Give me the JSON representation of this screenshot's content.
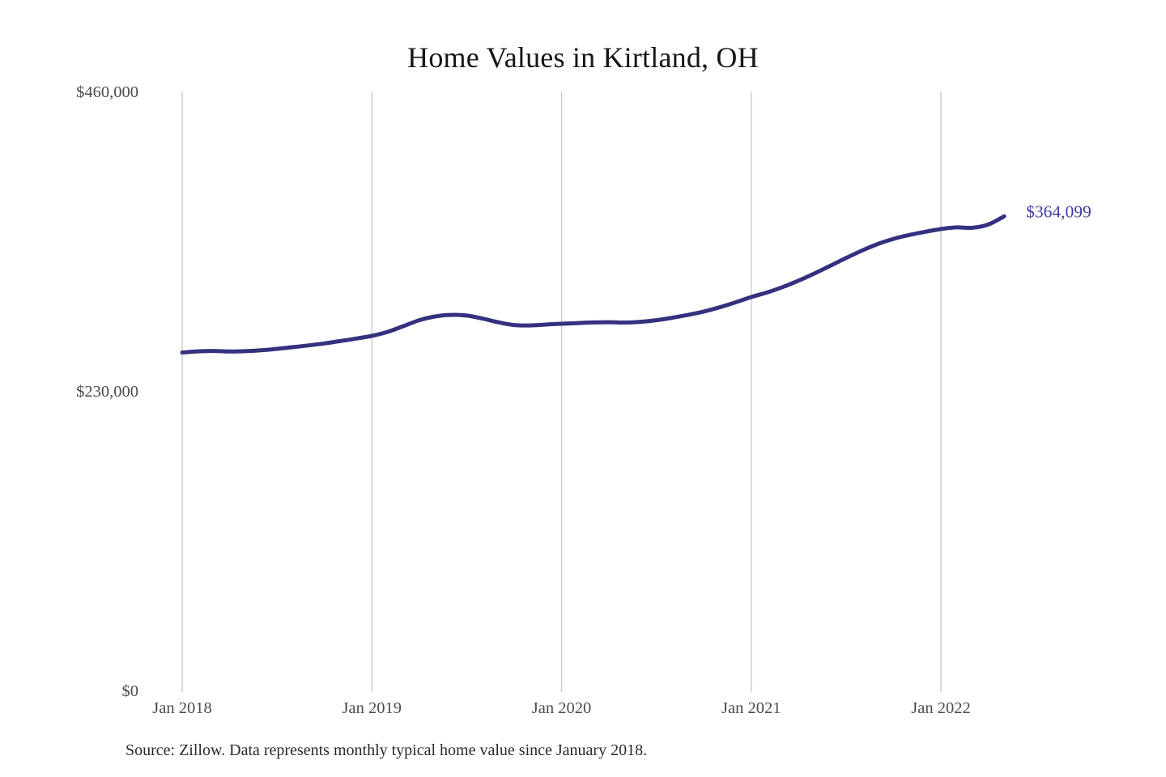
{
  "chart_data": {
    "type": "line",
    "title": "Home Values in Kirtland, OH",
    "source_note": "Source: Zillow. Data represents monthly typical home value since January 2018.",
    "xlabel": "",
    "ylabel": "",
    "ylim": [
      0,
      460000
    ],
    "y_ticks": [
      0,
      230000,
      460000
    ],
    "y_tick_labels": [
      "$0",
      "$230,000",
      "$460,000"
    ],
    "x_tick_labels": [
      "Jan 2018",
      "Jan 2019",
      "Jan 2020",
      "Jan 2021",
      "Jan 2022"
    ],
    "grid": "vertical-only",
    "legend": "none",
    "line_color": "#34317f",
    "gridline_color": "#cbcbcb",
    "end_label": "$364,099",
    "end_label_color": "#403e9e",
    "final_value": 364099,
    "x": [
      "Jan 2018",
      "Feb 2018",
      "Mar 2018",
      "Apr 2018",
      "May 2018",
      "Jun 2018",
      "Jul 2018",
      "Aug 2018",
      "Sep 2018",
      "Oct 2018",
      "Nov 2018",
      "Dec 2018",
      "Jan 2019",
      "Feb 2019",
      "Mar 2019",
      "Apr 2019",
      "May 2019",
      "Jun 2019",
      "Jul 2019",
      "Aug 2019",
      "Sep 2019",
      "Oct 2019",
      "Nov 2019",
      "Dec 2019",
      "Jan 2020",
      "Feb 2020",
      "Mar 2020",
      "Apr 2020",
      "May 2020",
      "Jun 2020",
      "Jul 2020",
      "Aug 2020",
      "Sep 2020",
      "Oct 2020",
      "Nov 2020",
      "Dec 2020",
      "Jan 2021",
      "Feb 2021",
      "Mar 2021",
      "Apr 2021",
      "May 2021",
      "Jun 2021",
      "Jul 2021",
      "Aug 2021",
      "Sep 2021",
      "Oct 2021",
      "Nov 2021",
      "Dec 2021",
      "Jan 2022",
      "Feb 2022",
      "Mar 2022",
      "Apr 2022",
      "May 2022"
    ],
    "values": [
      259500,
      260400,
      260700,
      260300,
      260500,
      261200,
      262300,
      263600,
      265000,
      266500,
      268300,
      270200,
      272300,
      275400,
      279800,
      284300,
      287200,
      288400,
      287900,
      285600,
      282700,
      280600,
      280300,
      281000,
      281600,
      282100,
      282600,
      282800,
      282500,
      283100,
      284300,
      286200,
      288400,
      291000,
      294200,
      298000,
      302100,
      305600,
      309800,
      314700,
      320200,
      326100,
      332100,
      337800,
      342800,
      346800,
      349800,
      352200,
      354300,
      355600,
      355300,
      357800,
      364099
    ]
  }
}
